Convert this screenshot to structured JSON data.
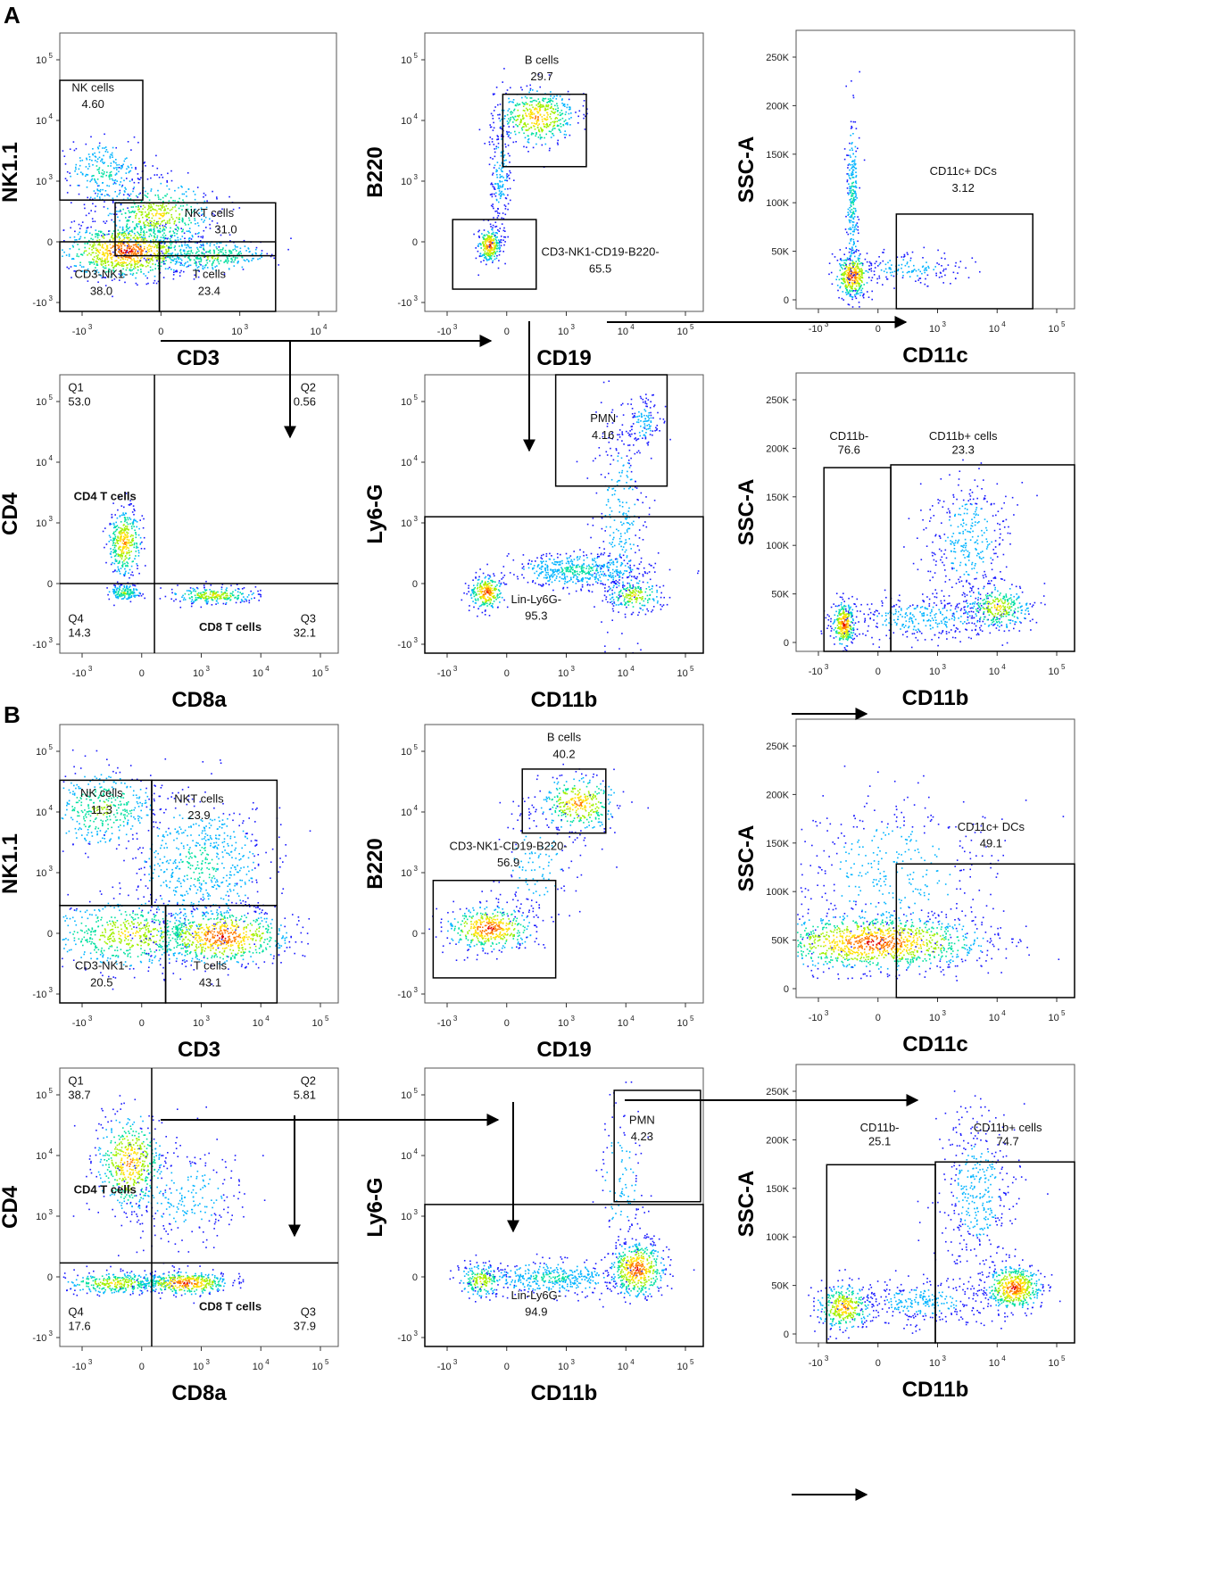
{
  "figure": {
    "sections": [
      {
        "letter": "A"
      },
      {
        "letter": "B"
      }
    ]
  },
  "chart_data": [
    {
      "type": "scatter",
      "section": "A",
      "xlabel": "CD3",
      "ylabel": "NK1.1",
      "xticks": [
        "-10 3",
        "0",
        "10 3",
        "10 4"
      ],
      "yticks": [
        "-10 3",
        "0",
        "10 3",
        "10 4",
        "10 5"
      ],
      "gates": [
        {
          "name": "NK cells",
          "value": "4.60"
        },
        {
          "name": "NKT cells",
          "value": "31.0"
        },
        {
          "name": "CD3-NK1-",
          "value": "38.0"
        },
        {
          "name": "T cells",
          "value": "23.4"
        }
      ]
    },
    {
      "type": "scatter",
      "section": "A",
      "xlabel": "CD19",
      "ylabel": "B220",
      "xticks": [
        "-10 3",
        "0",
        "10 3",
        "10 4",
        "10 5"
      ],
      "yticks": [
        "-10 3",
        "0",
        "10 3",
        "10 4",
        "10 5"
      ],
      "gates": [
        {
          "name": "B cells",
          "value": "29.7"
        },
        {
          "name": "CD3-NK1-CD19-B220-",
          "value": "65.5"
        }
      ]
    },
    {
      "type": "scatter",
      "section": "A",
      "xlabel": "CD11c",
      "ylabel": "SSC-A",
      "xticks": [
        "-10 3",
        "0",
        "10 3",
        "10 4",
        "10 5"
      ],
      "yticks": [
        "0",
        "50K",
        "100K",
        "150K",
        "200K",
        "250K"
      ],
      "gates": [
        {
          "name": "CD11c+ DCs",
          "value": "3.12"
        }
      ]
    },
    {
      "type": "scatter",
      "section": "A",
      "xlabel": "CD8a",
      "ylabel": "CD4",
      "xticks": [
        "-10 3",
        "0",
        "10 3",
        "10 4",
        "10 5"
      ],
      "yticks": [
        "-10 3",
        "0",
        "10 3",
        "10 4",
        "10 5"
      ],
      "quadrants": [
        {
          "name": "Q1",
          "value": "53.0"
        },
        {
          "name": "Q2",
          "value": "0.56"
        },
        {
          "name": "Q3",
          "value": "32.1"
        },
        {
          "name": "Q4",
          "value": "14.3"
        }
      ],
      "annotations": [
        "CD4 T cells",
        "CD8 T cells"
      ]
    },
    {
      "type": "scatter",
      "section": "A",
      "xlabel": "CD11b",
      "ylabel": "Ly6-G",
      "xticks": [
        "-10 3",
        "0",
        "10 3",
        "10 4",
        "10 5"
      ],
      "yticks": [
        "-10 3",
        "0",
        "10 3",
        "10 4",
        "10 5"
      ],
      "gates": [
        {
          "name": "PMN",
          "value": "4.16"
        },
        {
          "name": "Lin-Ly6G-",
          "value": "95.3"
        }
      ]
    },
    {
      "type": "scatter",
      "section": "A",
      "xlabel": "CD11b",
      "ylabel": "SSC-A",
      "xticks": [
        "-10 3",
        "0",
        "10 3",
        "10 4",
        "10 5"
      ],
      "yticks": [
        "0",
        "50K",
        "100K",
        "150K",
        "200K",
        "250K"
      ],
      "gates": [
        {
          "name": "CD11b-",
          "value": "76.6"
        },
        {
          "name": "CD11b+ cells",
          "value": "23.3"
        }
      ]
    },
    {
      "type": "scatter",
      "section": "B",
      "xlabel": "CD3",
      "ylabel": "NK1.1",
      "xticks": [
        "-10 3",
        "0",
        "10 3",
        "10 4",
        "10 5"
      ],
      "yticks": [
        "-10 3",
        "0",
        "10 3",
        "10 4",
        "10 5"
      ],
      "gates": [
        {
          "name": "NK cells",
          "value": "11.3"
        },
        {
          "name": "NKT cells",
          "value": "23.9"
        },
        {
          "name": "CD3-NK1-",
          "value": "20.5"
        },
        {
          "name": "T cells",
          "value": "43.1"
        }
      ]
    },
    {
      "type": "scatter",
      "section": "B",
      "xlabel": "CD19",
      "ylabel": "B220",
      "xticks": [
        "-10 3",
        "0",
        "10 3",
        "10 4",
        "10 5"
      ],
      "yticks": [
        "-10 3",
        "0",
        "10 3",
        "10 4",
        "10 5"
      ],
      "gates": [
        {
          "name": "B cells",
          "value": "40.2"
        },
        {
          "name": "CD3-NK1-CD19-B220-",
          "value": "56.9"
        }
      ]
    },
    {
      "type": "scatter",
      "section": "B",
      "xlabel": "CD11c",
      "ylabel": "SSC-A",
      "xticks": [
        "-10 3",
        "0",
        "10 3",
        "10 4",
        "10 5"
      ],
      "yticks": [
        "0",
        "50K",
        "100K",
        "150K",
        "200K",
        "250K"
      ],
      "gates": [
        {
          "name": "CD11c+ DCs",
          "value": "49.1"
        }
      ]
    },
    {
      "type": "scatter",
      "section": "B",
      "xlabel": "CD8a",
      "ylabel": "CD4",
      "xticks": [
        "-10 3",
        "0",
        "10 3",
        "10 4",
        "10 5"
      ],
      "yticks": [
        "-10 3",
        "0",
        "10 3",
        "10 4",
        "10 5"
      ],
      "quadrants": [
        {
          "name": "Q1",
          "value": "38.7"
        },
        {
          "name": "Q2",
          "value": "5.81"
        },
        {
          "name": "Q3",
          "value": "37.9"
        },
        {
          "name": "Q4",
          "value": "17.6"
        }
      ],
      "annotations": [
        "CD4 T cells",
        "CD8 T cells"
      ]
    },
    {
      "type": "scatter",
      "section": "B",
      "xlabel": "CD11b",
      "ylabel": "Ly6-G",
      "xticks": [
        "-10 3",
        "0",
        "10 3",
        "10 4",
        "10 5"
      ],
      "yticks": [
        "-10 3",
        "0",
        "10 3",
        "10 4",
        "10 5"
      ],
      "gates": [
        {
          "name": "PMN",
          "value": "4.23"
        },
        {
          "name": "Lin-Ly6G-",
          "value": "94.9"
        }
      ]
    },
    {
      "type": "scatter",
      "section": "B",
      "xlabel": "CD11b",
      "ylabel": "SSC-A",
      "xticks": [
        "-10 3",
        "0",
        "10 3",
        "10 4",
        "10 5"
      ],
      "yticks": [
        "0",
        "50K",
        "100K",
        "150K",
        "200K",
        "250K"
      ],
      "gates": [
        {
          "name": "CD11b-",
          "value": "25.1"
        },
        {
          "name": "CD11b+ cells",
          "value": "74.7"
        }
      ]
    }
  ],
  "colors": {
    "density": [
      "#1a1aff",
      "#00b4ff",
      "#00e0a0",
      "#a0f000",
      "#ffe000",
      "#ff7a00",
      "#e00000"
    ],
    "frame": "#555555",
    "gate": "#000000"
  }
}
